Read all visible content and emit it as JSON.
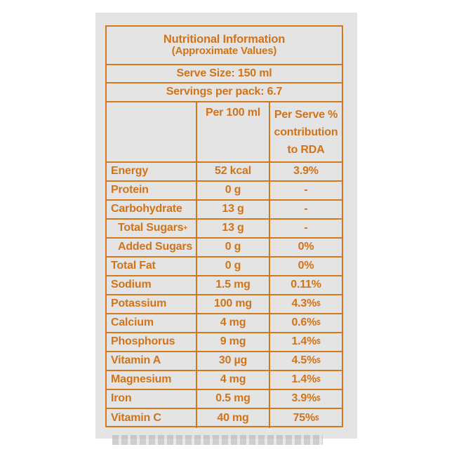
{
  "label": {
    "title_line1": "Nutritional Information",
    "title_line2": "(Approximate Values)",
    "serve_size": "Serve Size: 150 ml",
    "servings_per_pack": "Servings per pack: 6.7",
    "col_per100": "Per 100 ml",
    "col_perserve_lines": [
      "Per Serve %",
      "contribution",
      "to RDA"
    ],
    "rows": [
      {
        "nutrient": "Energy",
        "per100": "52 kcal",
        "perserve": "3.9%",
        "mark": "",
        "indent": false
      },
      {
        "nutrient": "Protein",
        "per100": "0 g",
        "perserve": "-",
        "mark": "",
        "indent": false
      },
      {
        "nutrient": "Carbohydrate",
        "per100": "13 g",
        "perserve": "-",
        "mark": "",
        "indent": false
      },
      {
        "nutrient": "Total Sugars",
        "nutrient_mark": "+",
        "per100": "13 g",
        "perserve": "-",
        "mark": "",
        "indent": true
      },
      {
        "nutrient": "Added Sugars",
        "per100": "0 g",
        "perserve": "0%",
        "mark": "",
        "indent": true
      },
      {
        "nutrient": "Total Fat",
        "per100": "0 g",
        "perserve": "0%",
        "mark": "",
        "indent": false
      },
      {
        "nutrient": "Sodium",
        "per100": "1.5 mg",
        "perserve": "0.11%",
        "mark": "",
        "indent": false
      },
      {
        "nutrient": "Potassium",
        "per100": "100 mg",
        "perserve": "4.3%",
        "mark": "$",
        "indent": false
      },
      {
        "nutrient": "Calcium",
        "per100": "4 mg",
        "perserve": "0.6%",
        "mark": "$",
        "indent": false
      },
      {
        "nutrient": "Phosphorus",
        "per100": "9 mg",
        "perserve": "1.4%",
        "mark": "$",
        "indent": false
      },
      {
        "nutrient": "Vitamin A",
        "per100": "30 µg",
        "perserve": "4.5%",
        "mark": "$",
        "indent": false
      },
      {
        "nutrient": "Magnesium",
        "per100": "4 mg",
        "perserve": "1.4%",
        "mark": "$",
        "indent": false
      },
      {
        "nutrient": "Iron",
        "per100": "0.5 mg",
        "perserve": "3.9%",
        "mark": "$",
        "indent": false
      },
      {
        "nutrient": "Vitamin C",
        "per100": "40 mg",
        "perserve": "75%",
        "mark": "$",
        "indent": false
      }
    ],
    "colors": {
      "ink": "#cf7418",
      "panel": "#e4e4e4"
    }
  }
}
